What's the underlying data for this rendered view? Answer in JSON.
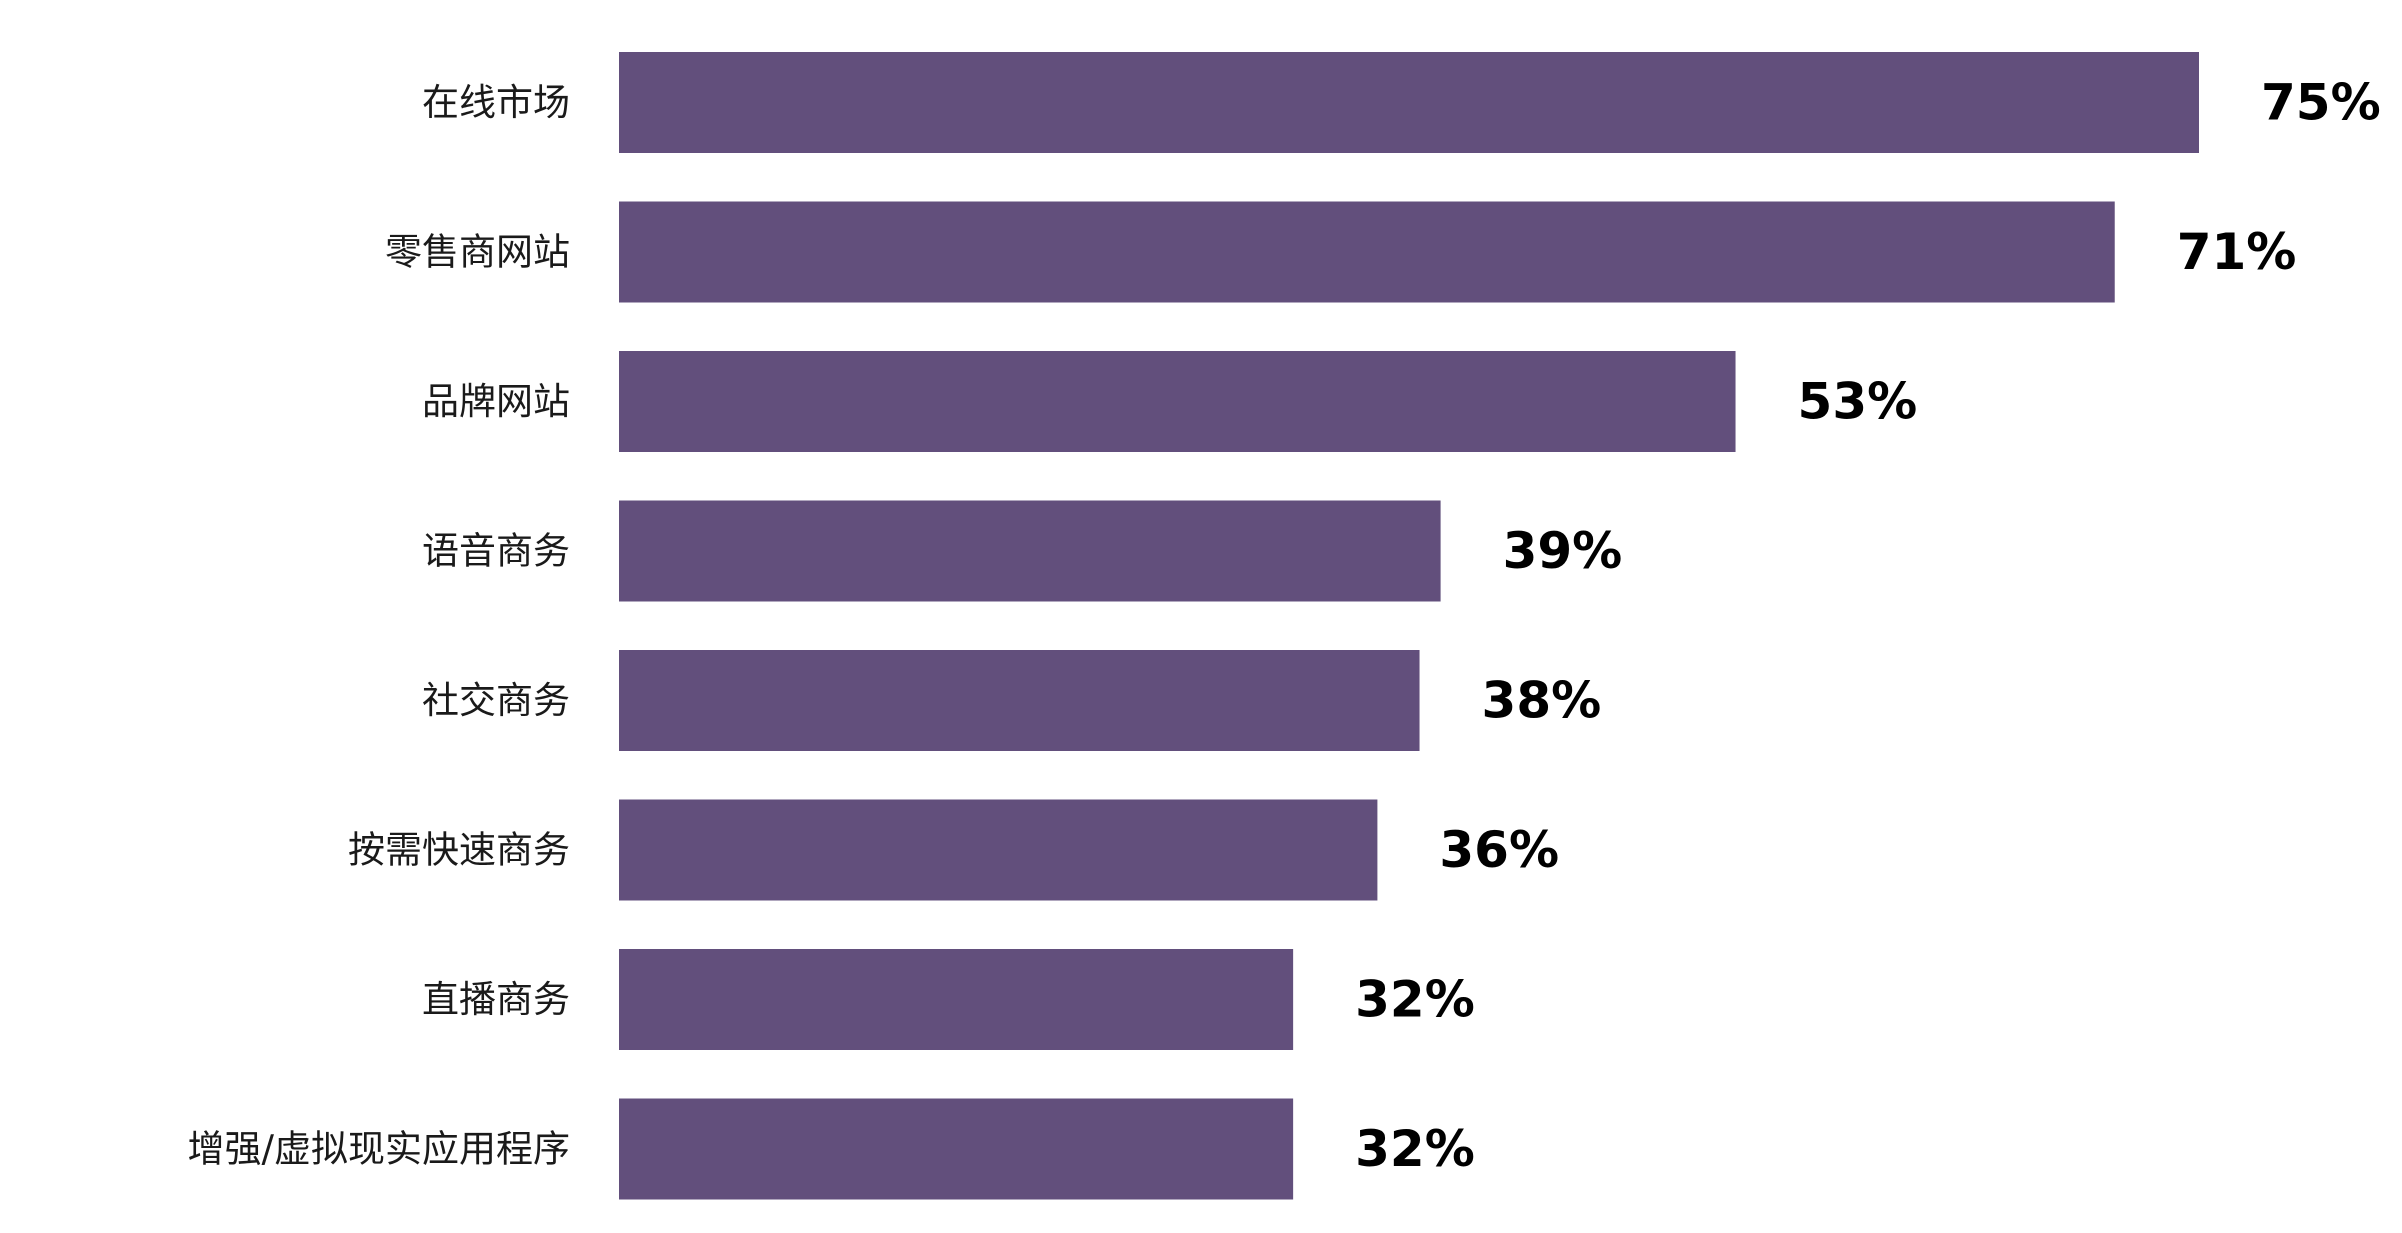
{
  "chart_data": {
    "type": "bar",
    "orientation": "horizontal",
    "categories": [
      "在线市场",
      "零售商网站",
      "品牌网站",
      "语音商务",
      "社交商务",
      "按需快速商务",
      "直播商务",
      "增强/虚拟现实应用程序"
    ],
    "values": [
      75,
      71,
      53,
      39,
      38,
      36,
      32,
      32
    ],
    "value_labels": [
      "75%",
      "71%",
      "53%",
      "39%",
      "38%",
      "36%",
      "32%",
      "32%"
    ],
    "unit": "%",
    "bar_color": "#624f7c",
    "grid": false,
    "legend": "none"
  }
}
